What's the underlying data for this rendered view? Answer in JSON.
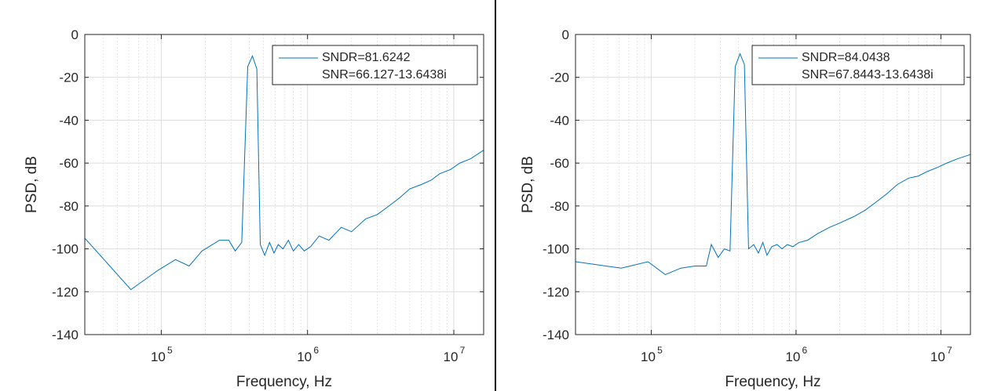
{
  "chart_data": [
    {
      "type": "line",
      "xlabel": "Frequency, Hz",
      "ylabel": "PSD, dB",
      "xscale": "log",
      "xlim": [
        30000,
        16000000
      ],
      "ylim": [
        -140,
        0
      ],
      "yticks": [
        0,
        -20,
        -40,
        -60,
        -80,
        -100,
        -120,
        -140
      ],
      "xticks": [
        {
          "value": 100000,
          "label": "10",
          "exp": "5"
        },
        {
          "value": 1000000,
          "label": "10",
          "exp": "6"
        },
        {
          "value": 10000000,
          "label": "10",
          "exp": "7"
        }
      ],
      "grid": true,
      "legend_position": "top-right",
      "series_color": "#0072BD",
      "legend": [
        "SNDR=81.6242",
        "SNR=66.127-13.6438i"
      ],
      "x": [
        30000,
        62000,
        95000,
        125000,
        155000,
        190000,
        250000,
        290000,
        320000,
        355000,
        390000,
        420000,
        450000,
        475000,
        510000,
        550000,
        590000,
        630000,
        680000,
        740000,
        800000,
        870000,
        950000,
        1050000,
        1200000,
        1400000,
        1700000,
        2000000,
        2500000,
        3000000,
        3600000,
        4300000,
        5000000,
        6000000,
        7000000,
        8000000,
        9500000,
        11000000,
        13000000,
        16000000
      ],
      "values": [
        -95,
        -119,
        -110,
        -105,
        -108,
        -101,
        -96,
        -96,
        -101,
        -97,
        -15,
        -10,
        -16,
        -98,
        -103,
        -97,
        -102,
        -98,
        -100,
        -96,
        -101,
        -98,
        -101,
        -99,
        -94,
        -96,
        -90,
        -92,
        -86,
        -84,
        -80,
        -76,
        -72,
        -70,
        -68,
        -65,
        -63,
        -60,
        -58,
        -54
      ]
    },
    {
      "type": "line",
      "xlabel": "Frequency, Hz",
      "ylabel": "PSD, dB",
      "xscale": "log",
      "xlim": [
        30000,
        16000000
      ],
      "ylim": [
        -140,
        0
      ],
      "yticks": [
        0,
        -20,
        -40,
        -60,
        -80,
        -100,
        -120,
        -140
      ],
      "xticks": [
        {
          "value": 100000,
          "label": "10",
          "exp": "5"
        },
        {
          "value": 1000000,
          "label": "10",
          "exp": "6"
        },
        {
          "value": 10000000,
          "label": "10",
          "exp": "7"
        }
      ],
      "grid": true,
      "legend_position": "top-right",
      "series_color": "#0072BD",
      "legend": [
        "SNDR=84.0438",
        "SNR=67.8443-13.6438i"
      ],
      "x": [
        30000,
        62000,
        95000,
        125000,
        160000,
        200000,
        240000,
        260000,
        290000,
        320000,
        350000,
        380000,
        410000,
        440000,
        470000,
        510000,
        550000,
        590000,
        630000,
        680000,
        740000,
        800000,
        870000,
        950000,
        1050000,
        1200000,
        1400000,
        1700000,
        2000000,
        2500000,
        3000000,
        3600000,
        4300000,
        5000000,
        6000000,
        7000000,
        8000000,
        9500000,
        11000000,
        13000000,
        16000000
      ],
      "values": [
        -106,
        -109,
        -106,
        -112,
        -109,
        -108,
        -108,
        -98,
        -104,
        -100,
        -101,
        -15,
        -9,
        -14,
        -100,
        -98,
        -102,
        -97,
        -103,
        -99,
        -98,
        -100,
        -98,
        -99,
        -97,
        -96,
        -93,
        -90,
        -88,
        -85,
        -82,
        -78,
        -74,
        -70,
        -67,
        -66,
        -64,
        -62,
        -60,
        -58,
        -56
      ]
    }
  ]
}
